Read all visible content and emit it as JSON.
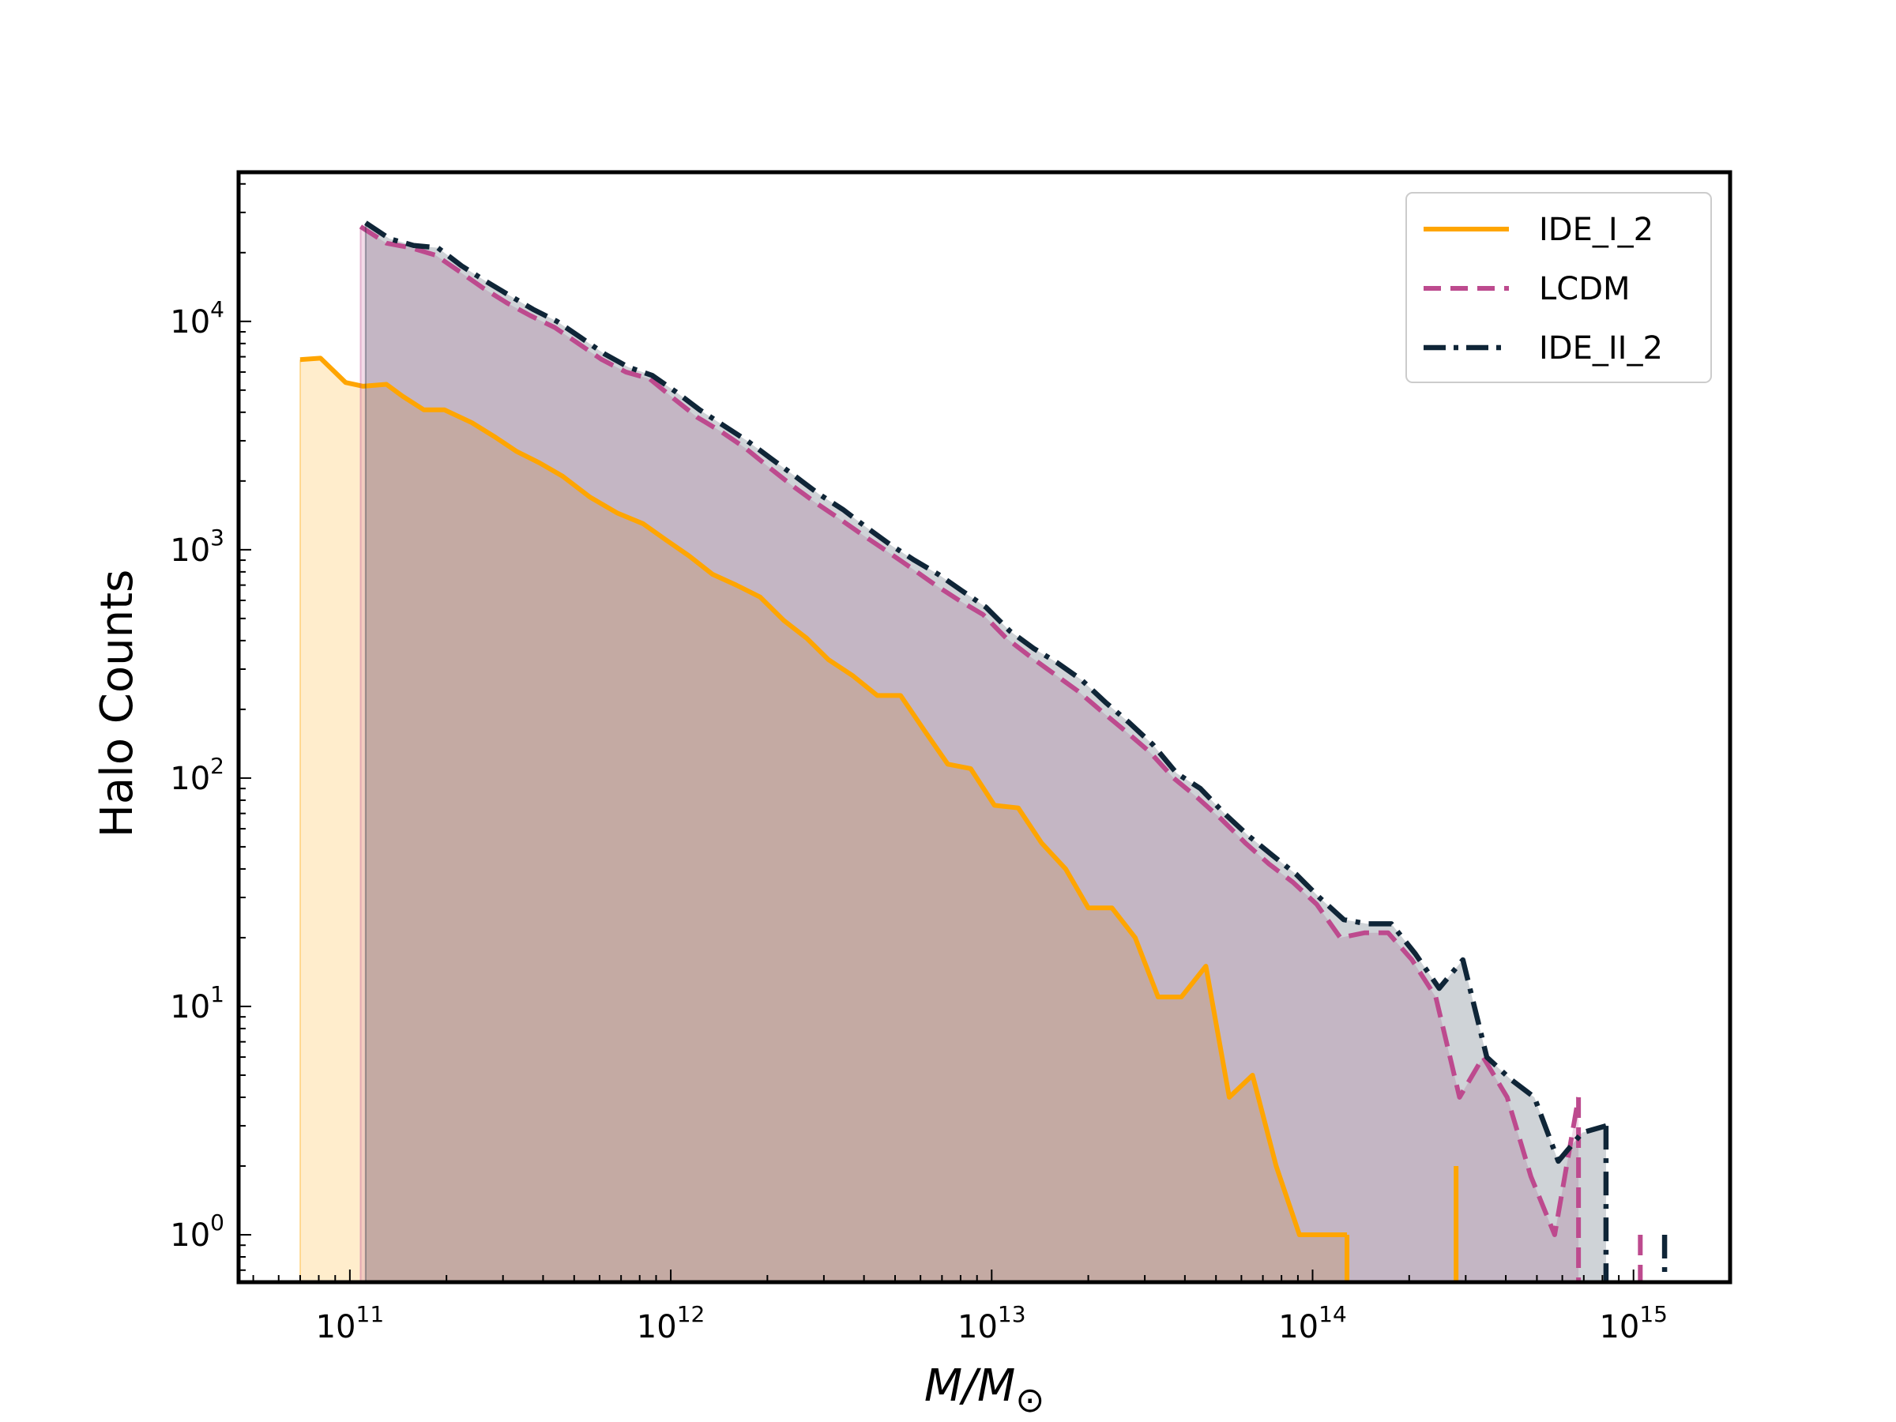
{
  "chart_data": {
    "type": "line",
    "xlabel": "M/M",
    "xlabel_subscript": "⊙",
    "ylabel": "Halo Counts",
    "xscale": "log",
    "yscale": "log",
    "xlim": [
      45000000000.0,
      2000000000000000.0
    ],
    "ylim": [
      0.62,
      45000
    ],
    "x_ticks": [
      {
        "value": 100000000000.0,
        "base": "10",
        "exp": "11"
      },
      {
        "value": 1000000000000.0,
        "base": "10",
        "exp": "12"
      },
      {
        "value": 10000000000000.0,
        "base": "10",
        "exp": "13"
      },
      {
        "value": 100000000000000.0,
        "base": "10",
        "exp": "14"
      },
      {
        "value": 1000000000000000.0,
        "base": "10",
        "exp": "15"
      }
    ],
    "y_ticks": [
      {
        "value": 1,
        "base": "10",
        "exp": "0"
      },
      {
        "value": 10,
        "base": "10",
        "exp": "1"
      },
      {
        "value": 100,
        "base": "10",
        "exp": "2"
      },
      {
        "value": 1000,
        "base": "10",
        "exp": "3"
      },
      {
        "value": 10000,
        "base": "10",
        "exp": "4"
      }
    ],
    "grid": false,
    "legend_position": "top-right",
    "series": [
      {
        "name": "IDE_I_2",
        "color": "#ffa500",
        "fill": "#ffa500",
        "fill_opacity": 0.2,
        "style": "solid",
        "segments": [
          {
            "x": [
              70000000000.0,
              81000000000.0,
              97000000000.0,
              110000000000.0,
              130000000000.0,
              146000000000.0,
              170000000000.0,
              197000000000.0,
              240000000000.0,
              285000000000.0,
              330000000000.0,
              390000000000.0,
              460000000000.0,
              560000000000.0,
              680000000000.0,
              820000000000.0,
              970000000000.0,
              1140000000000.0,
              1350000000000.0,
              1600000000000.0,
              1900000000000.0,
              2250000000000.0,
              2650000000000.0,
              3100000000000.0,
              3700000000000.0,
              4400000000000.0,
              5200000000000.0,
              6200000000000.0,
              7300000000000.0,
              8600000000000.0,
              10200000000000.0,
              12100000000000.0,
              14300000000000.0,
              17000000000000.0,
              20000000000000.0,
              23700000000000.0,
              28000000000000.0,
              33000000000000.0,
              39000000000000.0,
              46500000000000.0,
              55000000000000.0,
              65000000000000.0,
              77000000000000.0,
              91000000000000.0,
              108000000000000.0,
              128000000000000.0
            ],
            "y": [
              6800,
              6900,
              5400,
              5200,
              5300,
              4700,
              4100,
              4100,
              3600,
              3100,
              2700,
              2400,
              2100,
              1700,
              1450,
              1300,
              1100,
              940,
              780,
              700,
              620,
              490,
              410,
              330,
              280,
              230,
              230,
              160,
              115,
              110,
              76,
              74,
              52,
              40,
              27,
              27,
              20,
              11,
              11,
              15,
              4,
              5,
              2,
              1,
              1,
              1
            ]
          },
          {
            "x": [
              280000000000000.0
            ],
            "y": [
              2
            ]
          }
        ]
      },
      {
        "name": "LCDM",
        "color": "#bd4a8e",
        "fill": "#bd4a8e",
        "fill_opacity": 0.2,
        "style": "dashed",
        "segments": [
          {
            "x": [
              108000000000.0,
              130000000000.0,
              155000000000.0,
              185000000000.0,
              220000000000.0,
              260000000000.0,
              310000000000.0,
              365000000000.0,
              435000000000.0,
              515000000000.0,
              610000000000.0,
              725000000000.0,
              860000000000.0,
              1020000000000.0,
              1210000000000.0,
              1430000000000.0,
              1700000000000.0,
              2020000000000.0,
              2400000000000.0,
              2840000000000.0,
              3370000000000.0,
              4000000000000.0,
              4740000000000.0,
              5630000000000.0,
              6680000000000.0,
              7920000000000.0,
              9400000000000.0,
              11100000000000.0,
              13200000000000.0,
              15700000000000.0,
              18600000000000.0,
              22100000000000.0,
              26200000000000.0,
              31100000000000.0,
              36900000000000.0,
              43800000000000.0,
              52000000000000.0,
              61700000000000.0,
              73200000000000.0,
              86800000000000.0,
              103000000000000.0,
              122000000000000.0,
              145000000000000.0,
              172000000000000.0,
              204000000000000.0,
              242000000000000.0,
              287000000000000.0,
              340000000000000.0,
              404000000000000.0,
              479000000000000.0,
              568000000000000.0,
              674000000000000.0
            ],
            "y": [
              26000,
              22000,
              21000,
              19500,
              16500,
              14000,
              12000,
              10600,
              9400,
              8000,
              6800,
              6000,
              5600,
              4600,
              3800,
              3300,
              2800,
              2300,
              1900,
              1600,
              1360,
              1150,
              980,
              830,
              700,
              600,
              520,
              410,
              340,
              285,
              240,
              195,
              160,
              130,
              100,
              82,
              66,
              52,
              42,
              35,
              28,
              20,
              21,
              21,
              16,
              11,
              4,
              6,
              4,
              1.8,
              1,
              4
            ]
          },
          {
            "x": [
              1050000000000000.0
            ],
            "y": [
              1
            ]
          }
        ]
      },
      {
        "name": "IDE_II_2",
        "color": "#0f2537",
        "fill": "#0f2537",
        "fill_opacity": 0.2,
        "style": "dashdot",
        "segments": [
          {
            "x": [
              112000000000.0,
              133000000000.0,
              158000000000.0,
              188000000000.0,
              223000000000.0,
              265000000000.0,
              314000000000.0,
              372000000000.0,
              442000000000.0,
              524000000000.0,
              622000000000.0,
              738000000000.0,
              875000000000.0,
              1040000000000.0,
              1230000000000.0,
              1460000000000.0,
              1730000000000.0,
              2060000000000.0,
              2440000000000.0,
              2900000000000.0,
              3440000000000.0,
              4080000000000.0,
              4840000000000.0,
              5740000000000.0,
              6820000000000.0,
              8090000000000.0,
              9600000000000.0,
              11400000000000.0,
              13500000000000.0,
              16000000000000.0,
              19000000000000.0,
              22600000000000.0,
              26800000000000.0,
              31800000000000.0,
              37700000000000.0,
              44700000000000.0,
              53100000000000.0,
              63000000000000.0,
              74800000000000.0,
              88700000000000.0,
              105000000000000.0,
              125000000000000.0,
              148000000000000.0,
              176000000000000.0,
              209000000000000.0,
              248000000000000.0,
              294000000000000.0,
              349000000000000.0,
              414000000000000.0,
              491000000000000.0,
              583000000000000.0,
              692000000000000.0,
              821000000000000.0
            ],
            "y": [
              27000,
              23000,
              21500,
              21000,
              17500,
              15000,
              13000,
              11300,
              10000,
              8500,
              7200,
              6300,
              5800,
              4900,
              4100,
              3500,
              3000,
              2500,
              2100,
              1750,
              1500,
              1250,
              1050,
              900,
              780,
              660,
              560,
              440,
              370,
              320,
              270,
              215,
              175,
              140,
              105,
              90,
              70,
              56,
              46,
              38,
              30,
              24,
              23,
              23,
              17,
              12,
              16,
              6,
              4.8,
              4,
              2.1,
              2.8,
              3
            ]
          },
          {
            "x": [
              1250000000000000.0
            ],
            "y": [
              1
            ]
          }
        ]
      }
    ]
  }
}
